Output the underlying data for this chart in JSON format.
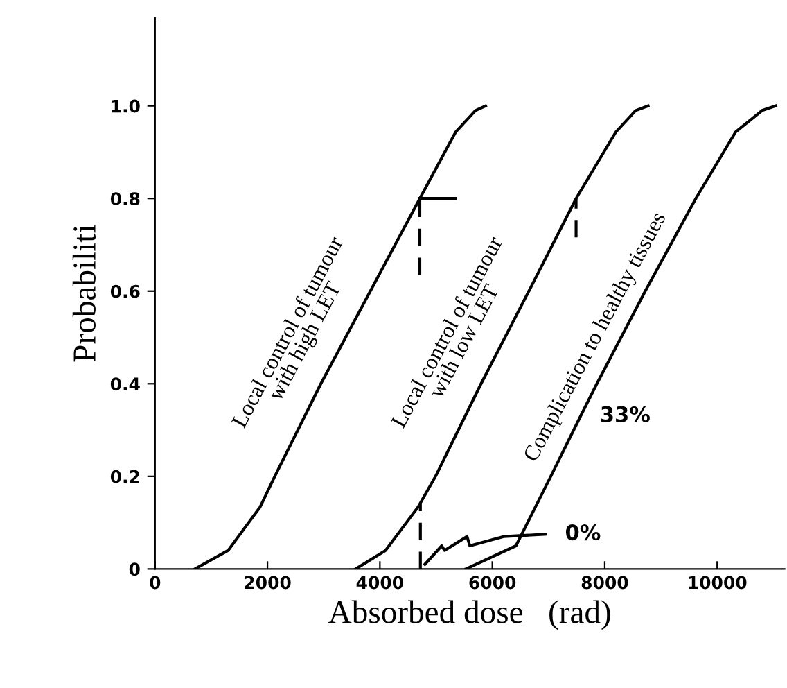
{
  "chart_data": {
    "type": "line",
    "xlabel": "Absorbed dose   (rad)",
    "ylabel": "Probabiliti",
    "xlim": [
      0,
      11200
    ],
    "ylim": [
      0,
      1.19
    ],
    "xticks": [
      0,
      2000,
      4000,
      6000,
      8000,
      10000
    ],
    "yticks": [
      0,
      0.2,
      0.4,
      0.6,
      0.8,
      {
        "value": 1.0,
        "label": "1.0"
      }
    ],
    "grid": false,
    "legend": false,
    "marker": "none",
    "series": [
      {
        "name": "Local control of tumour\nwith high LET",
        "color": "#000000",
        "x": [
          710,
          1300,
          1870,
          2130,
          2950,
          3830,
          4710,
          5350,
          5700,
          5880
        ],
        "values": [
          0,
          0.04,
          0.134,
          0.2,
          0.4,
          0.6,
          0.8,
          0.944,
          0.99,
          1.0
        ]
      },
      {
        "name": "Local control of tumour\nwith low LET",
        "color": "#000000",
        "x": [
          3570,
          4100,
          4680,
          4990,
          5800,
          6650,
          7490,
          8200,
          8550,
          8770
        ],
        "values": [
          0,
          0.04,
          0.134,
          0.2,
          0.4,
          0.6,
          0.8,
          0.944,
          0.99,
          1.0
        ]
      },
      {
        "name": "Complication to healthy tissues",
        "color": "#000000",
        "x": [
          5530,
          6420,
          7040,
          7570,
          7860,
          8720,
          9620,
          10330,
          10800,
          11040
        ],
        "values": [
          0,
          0.05,
          0.2,
          0.33,
          0.4,
          0.6,
          0.8,
          0.944,
          0.99,
          1.0
        ]
      },
      {
        "color": "#000000",
        "line_style": "dashed",
        "x": [
          4710,
          4710
        ],
        "values": [
          0.635,
          0.8
        ]
      },
      {
        "color": "#000000",
        "line_style": "solid",
        "x": [
          4710,
          5350
        ],
        "values": [
          0.8,
          0.8
        ]
      },
      {
        "color": "#000000",
        "line_style": "dashed",
        "x": [
          7490,
          7490
        ],
        "values": [
          0.716,
          0.8
        ]
      },
      {
        "color": "#000000",
        "line_style": "dashed",
        "x": [
          4720,
          4720
        ],
        "values": [
          0,
          0.14
        ]
      },
      {
        "color": "#000000",
        "line_style": "solid",
        "x": [
          4800,
          5100,
          5150,
          5550,
          5600,
          6200,
          6950
        ],
        "values": [
          0.01,
          0.05,
          0.04,
          0.07,
          0.05,
          0.07,
          0.075
        ]
      }
    ],
    "annotations": [
      {
        "text": "0%",
        "x": 6950,
        "y": 0.075
      },
      {
        "text": "33%",
        "x": 7570,
        "y": 0.33
      }
    ]
  }
}
